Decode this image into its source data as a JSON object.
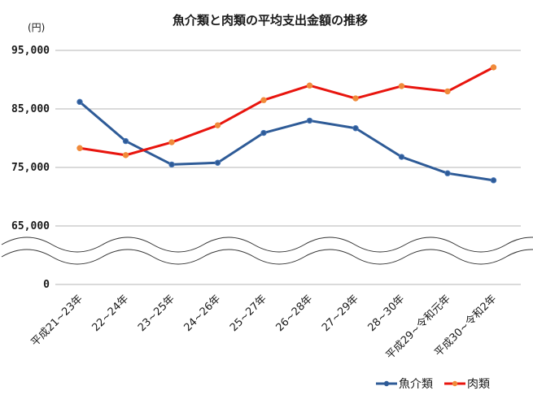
{
  "chart_data": {
    "type": "line",
    "title": "魚介類と肉類の平均支出金額の推移",
    "ylabel": "(円)",
    "xlabel": "",
    "categories": [
      "平成21~23年",
      "22~24年",
      "23~25年",
      "24~26年",
      "25~27年",
      "26~28年",
      "27~29年",
      "28~30年",
      "平成29~令和元年",
      "平成30~令和2年"
    ],
    "yticks": [
      {
        "value": 95000,
        "label": "95,000"
      },
      {
        "value": 85000,
        "label": "85,000"
      },
      {
        "value": 75000,
        "label": "75,000"
      },
      {
        "value": 65000,
        "label": "65,000"
      },
      {
        "value": 0,
        "label": "0"
      }
    ],
    "ylim": [
      65000,
      95000
    ],
    "axis_break": true,
    "grid": true,
    "legend_position": "bottom-right",
    "series": [
      {
        "name": "魚介類",
        "color": "#2e5b97",
        "values": [
          86200,
          79500,
          75500,
          75800,
          80900,
          83000,
          81700,
          76800,
          74000,
          72800
        ]
      },
      {
        "name": "肉類",
        "color": "#e8150e",
        "values": [
          78300,
          77100,
          79300,
          82200,
          86500,
          89000,
          86800,
          88900,
          88000,
          92100
        ]
      }
    ],
    "marker_color": "#f08a3a"
  }
}
